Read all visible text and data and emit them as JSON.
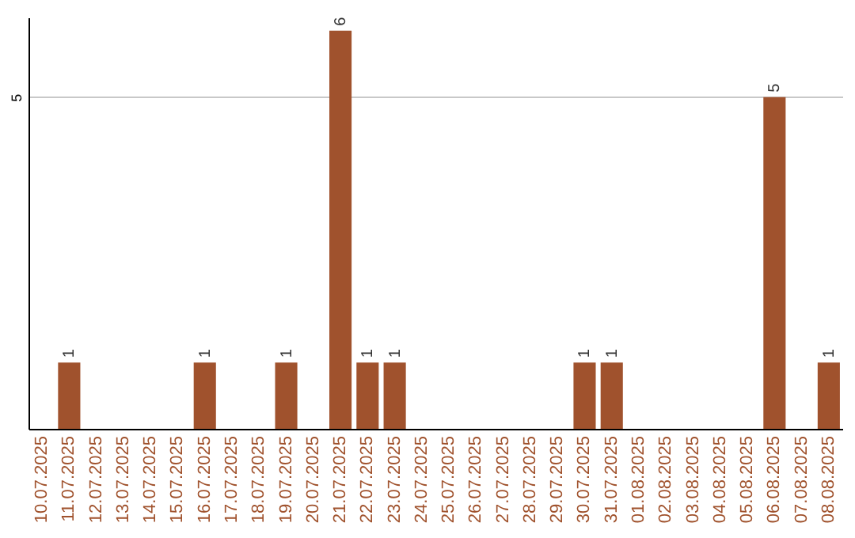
{
  "chart_data": {
    "type": "bar",
    "categories": [
      "10.07.2025",
      "11.07.2025",
      "12.07.2025",
      "13.07.2025",
      "14.07.2025",
      "15.07.2025",
      "16.07.2025",
      "17.07.2025",
      "18.07.2025",
      "19.07.2025",
      "20.07.2025",
      "21.07.2025",
      "22.07.2025",
      "23.07.2025",
      "24.07.2025",
      "25.07.2025",
      "26.07.2025",
      "27.07.2025",
      "28.07.2025",
      "29.07.2025",
      "30.07.2025",
      "31.07.2025",
      "01.08.2025",
      "02.08.2025",
      "03.08.2025",
      "04.08.2025",
      "05.08.2025",
      "06.08.2025",
      "07.08.2025",
      "08.08.2025"
    ],
    "values": [
      0,
      1,
      0,
      0,
      0,
      0,
      1,
      0,
      0,
      1,
      0,
      6,
      1,
      1,
      0,
      0,
      0,
      0,
      0,
      0,
      1,
      1,
      0,
      0,
      0,
      0,
      0,
      5,
      0,
      1
    ],
    "value_labels": [
      null,
      "1",
      null,
      null,
      null,
      null,
      "1",
      null,
      null,
      "1",
      null,
      "6",
      "1",
      "1",
      null,
      null,
      null,
      null,
      null,
      null,
      "1",
      "1",
      null,
      null,
      null,
      null,
      null,
      "5",
      null,
      "1"
    ],
    "color": "#a0522d",
    "ylim": [
      0,
      6.2
    ],
    "yticks": [
      5
    ],
    "grid": "y"
  }
}
